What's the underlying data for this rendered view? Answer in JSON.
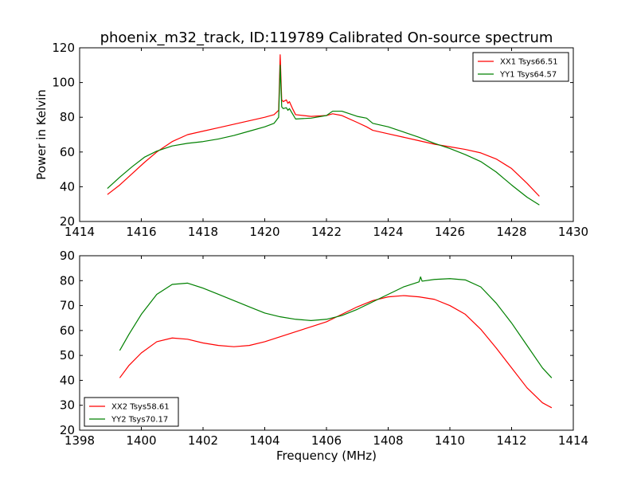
{
  "figure_title": "phoenix_m32_track, ID:119789 Calibrated On-source spectrum",
  "chart_data": [
    {
      "type": "line",
      "title": "phoenix_m32_track, ID:119789 Calibrated On-source spectrum",
      "xlabel": "",
      "ylabel": "Power in Kelvin",
      "xlim": [
        1414,
        1430
      ],
      "ylim": [
        20,
        120
      ],
      "xticks": [
        1414,
        1416,
        1418,
        1420,
        1422,
        1424,
        1426,
        1428,
        1430
      ],
      "yticks": [
        20,
        40,
        60,
        80,
        100,
        120
      ],
      "grid": false,
      "legend_position": "top-right",
      "series": [
        {
          "name": "XX1 Tsys66.51",
          "color": "#ff0000",
          "x": [
            1414.9,
            1415.3,
            1415.7,
            1416.1,
            1416.5,
            1417.0,
            1417.5,
            1418.0,
            1418.5,
            1419.0,
            1419.5,
            1420.0,
            1420.3,
            1420.45,
            1420.5,
            1420.55,
            1420.6,
            1420.7,
            1420.75,
            1420.8,
            1420.9,
            1421.0,
            1421.5,
            1422.0,
            1422.2,
            1422.5,
            1423.0,
            1423.3,
            1423.5,
            1424.0,
            1424.5,
            1425.0,
            1425.5,
            1426.0,
            1426.5,
            1427.0,
            1427.5,
            1428.0,
            1428.5,
            1428.9
          ],
          "y": [
            35.5,
            41.0,
            47.5,
            54.0,
            60.0,
            66.0,
            70.0,
            72.0,
            74.0,
            76.0,
            78.0,
            80.0,
            81.5,
            84.0,
            116.0,
            90.0,
            89.0,
            90.0,
            88.0,
            89.0,
            85.0,
            81.5,
            80.5,
            81.0,
            82.0,
            81.0,
            77.0,
            74.5,
            72.5,
            70.5,
            68.5,
            66.5,
            64.5,
            63.0,
            61.5,
            59.5,
            56.0,
            50.5,
            42.0,
            34.5
          ]
        },
        {
          "name": "YY1 Tsys64.57",
          "color": "#008000",
          "x": [
            1414.9,
            1415.3,
            1415.7,
            1416.1,
            1416.5,
            1417.0,
            1417.5,
            1418.0,
            1418.5,
            1419.0,
            1419.5,
            1420.0,
            1420.3,
            1420.45,
            1420.5,
            1420.55,
            1420.6,
            1420.7,
            1420.75,
            1420.8,
            1420.9,
            1421.0,
            1421.5,
            1422.0,
            1422.2,
            1422.5,
            1423.0,
            1423.3,
            1423.5,
            1424.0,
            1424.5,
            1425.0,
            1425.5,
            1426.0,
            1426.5,
            1427.0,
            1427.5,
            1428.0,
            1428.5,
            1428.9
          ],
          "y": [
            39.0,
            45.5,
            51.5,
            57.0,
            60.5,
            63.5,
            65.0,
            66.0,
            67.5,
            69.5,
            72.0,
            74.5,
            76.5,
            80.0,
            110.0,
            86.0,
            85.0,
            85.5,
            84.0,
            85.0,
            82.0,
            79.0,
            79.5,
            81.0,
            83.5,
            83.5,
            80.5,
            79.5,
            76.5,
            74.5,
            71.5,
            68.5,
            65.0,
            62.0,
            58.5,
            54.5,
            48.5,
            41.0,
            34.0,
            29.5
          ]
        }
      ]
    },
    {
      "type": "line",
      "title": "",
      "xlabel": "Frequency (MHz)",
      "ylabel": "",
      "xlim": [
        1398,
        1414
      ],
      "ylim": [
        20,
        90
      ],
      "xticks": [
        1398,
        1400,
        1402,
        1404,
        1406,
        1408,
        1410,
        1412,
        1414
      ],
      "yticks": [
        20,
        30,
        40,
        50,
        60,
        70,
        80,
        90
      ],
      "grid": false,
      "legend_position": "bottom-left",
      "series": [
        {
          "name": "XX2 Tsys58.61",
          "color": "#ff0000",
          "x": [
            1399.3,
            1399.6,
            1400.0,
            1400.5,
            1401.0,
            1401.5,
            1402.0,
            1402.5,
            1403.0,
            1403.5,
            1404.0,
            1404.5,
            1405.0,
            1405.5,
            1406.0,
            1406.5,
            1407.0,
            1407.5,
            1408.0,
            1408.5,
            1409.0,
            1409.5,
            1410.0,
            1410.5,
            1411.0,
            1411.5,
            1412.0,
            1412.5,
            1413.0,
            1413.3
          ],
          "y": [
            41.0,
            46.0,
            51.0,
            55.5,
            57.0,
            56.5,
            55.0,
            54.0,
            53.5,
            54.0,
            55.5,
            57.5,
            59.5,
            61.5,
            63.5,
            66.5,
            69.5,
            72.0,
            73.5,
            74.0,
            73.5,
            72.5,
            70.0,
            66.5,
            60.5,
            53.0,
            45.0,
            37.0,
            31.0,
            29.0
          ]
        },
        {
          "name": "YY2 Tsys70.17",
          "color": "#008000",
          "x": [
            1399.3,
            1399.6,
            1400.0,
            1400.5,
            1401.0,
            1401.5,
            1402.0,
            1402.5,
            1403.0,
            1403.5,
            1404.0,
            1404.5,
            1405.0,
            1405.5,
            1406.0,
            1406.5,
            1407.0,
            1407.5,
            1408.0,
            1408.5,
            1409.0,
            1409.05,
            1409.1,
            1409.5,
            1410.0,
            1410.5,
            1411.0,
            1411.5,
            1412.0,
            1412.5,
            1413.0,
            1413.3
          ],
          "y": [
            52.0,
            58.5,
            66.5,
            74.5,
            78.5,
            79.0,
            77.0,
            74.5,
            72.0,
            69.5,
            67.0,
            65.5,
            64.5,
            64.0,
            64.5,
            66.0,
            68.5,
            71.5,
            74.5,
            77.5,
            79.5,
            81.5,
            79.8,
            80.5,
            80.8,
            80.3,
            77.5,
            71.0,
            63.0,
            54.0,
            45.0,
            41.0
          ]
        }
      ]
    }
  ]
}
